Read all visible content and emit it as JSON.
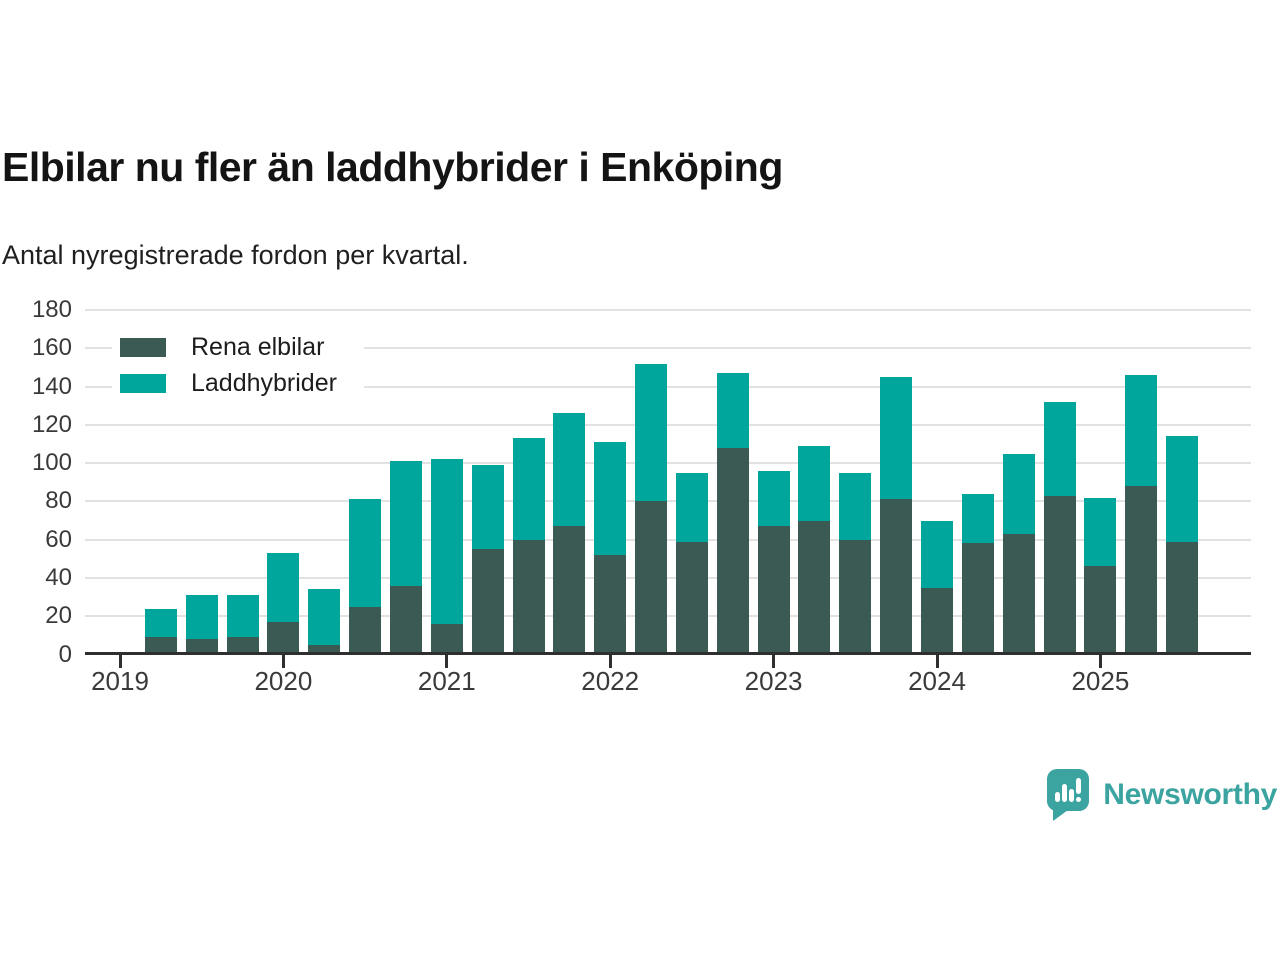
{
  "title": "Elbilar nu fler än laddhybrider i Enköping",
  "subtitle": "Antal nyregistrerade fordon per kvartal.",
  "legend": [
    {
      "label": "Rena elbilar",
      "color": "#3a5a53"
    },
    {
      "label": "Laddhybrider",
      "color": "#00a69b"
    }
  ],
  "branding": {
    "name": "Newsworthy",
    "color": "#3ba3a0"
  },
  "chart_data": {
    "type": "bar",
    "stacked": true,
    "title": "Elbilar nu fler än laddhybrider i Enköping",
    "subtitle": "Antal nyregistrerade fordon per kvartal.",
    "categories": [
      "2019 Q2",
      "2019 Q3",
      "2019 Q4",
      "2020 Q1",
      "2020 Q2",
      "2020 Q3",
      "2020 Q4",
      "2021 Q1",
      "2021 Q2",
      "2021 Q3",
      "2021 Q4",
      "2022 Q1",
      "2022 Q2",
      "2022 Q3",
      "2022 Q4",
      "2023 Q1",
      "2023 Q2",
      "2023 Q3",
      "2023 Q4",
      "2024 Q1",
      "2024 Q2",
      "2024 Q3",
      "2024 Q4",
      "2025 Q1",
      "2025 Q2",
      "2025 Q3"
    ],
    "series": [
      {
        "name": "Rena elbilar",
        "color": "#3a5a53",
        "values": [
          9,
          8,
          9,
          17,
          5,
          25,
          36,
          16,
          55,
          60,
          67,
          52,
          80,
          59,
          108,
          67,
          70,
          60,
          81,
          35,
          58,
          63,
          83,
          46,
          88,
          59
        ]
      },
      {
        "name": "Laddhybrider",
        "color": "#00a69b",
        "values": [
          15,
          23,
          22,
          36,
          29,
          56,
          65,
          86,
          44,
          53,
          59,
          59,
          72,
          36,
          39,
          29,
          39,
          35,
          64,
          35,
          26,
          42,
          49,
          36,
          58,
          55
        ]
      }
    ],
    "stack_totals": [
      24,
      31,
      31,
      53,
      34,
      81,
      101,
      102,
      99,
      113,
      126,
      111,
      152,
      95,
      147,
      96,
      109,
      95,
      145,
      70,
      84,
      105,
      132,
      82,
      146,
      114
    ],
    "ylim": [
      0,
      180
    ],
    "yticks": [
      0,
      20,
      40,
      60,
      80,
      100,
      120,
      140,
      160,
      180
    ],
    "xticks": [
      "2019",
      "2020",
      "2021",
      "2022",
      "2023",
      "2024",
      "2025"
    ],
    "grid": "horizontal",
    "legend_position": "top-left-inside"
  }
}
